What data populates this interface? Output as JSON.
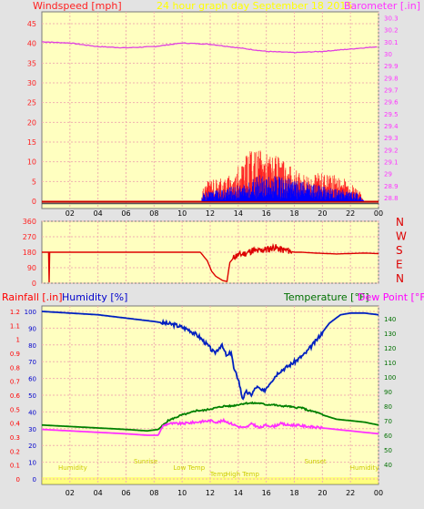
{
  "colors": {
    "background": "#e3e3e3",
    "plot_bg": "#ffffc0",
    "grid": "#f0b0b0",
    "wind": "#ff2020",
    "gust": "#0000ff",
    "barometer": "#e040e0",
    "direction": "#dd0000",
    "humidity": "#0020c0",
    "temperature": "#008000",
    "dew_point": "#ff30ff",
    "rain": "#ffff00",
    "title": "#ffff00",
    "rain_label": "#ff0000",
    "humidity_label": "#0000cc",
    "temperature_label": "#007000",
    "dew_point_label": "#ff00ff"
  },
  "chart_data": [
    {
      "id": "wind",
      "type": "line",
      "title": "24 hour graph day   September 18 2015",
      "ylabel_left": "Windspeed [mph]",
      "ylabel_right": "Barometer [.in]",
      "x_ticks": [
        "02",
        "04",
        "06",
        "08",
        "10",
        "12",
        "14",
        "16",
        "18",
        "20",
        "22",
        "00"
      ],
      "y_left_ticks": [
        0,
        5,
        10,
        15,
        20,
        25,
        30,
        35,
        40,
        45
      ],
      "ylim_left": [
        0,
        48
      ],
      "y_right_ticks": [
        "28.8",
        "28.9",
        "29",
        "29.1",
        "29.2",
        "29.3",
        "29.4",
        "29.5",
        "29.6",
        "29.7",
        "29.8",
        "29.9",
        "30",
        "30.1",
        "30.2",
        "30.3"
      ],
      "ylim_right": [
        28.77,
        30.35
      ],
      "grid": true,
      "series": [
        {
          "key": "barometer",
          "axis": "right",
          "x": [
            0,
            2,
            4,
            6,
            8,
            10,
            12,
            14,
            16,
            18,
            20,
            22,
            24
          ],
          "y": [
            30.1,
            30.09,
            30.06,
            30.05,
            30.06,
            30.09,
            30.08,
            30.05,
            30.02,
            30.01,
            30.02,
            30.04,
            30.06
          ]
        },
        {
          "key": "wind_env",
          "axis": "left",
          "x": [
            0,
            11.3,
            11.5,
            12,
            13,
            13.8,
            14.2,
            15,
            15.6,
            16.5,
            17.5,
            18.5,
            19.5,
            20.5,
            21.5,
            22.5,
            23,
            24
          ],
          "y": [
            0,
            0,
            3,
            5,
            5,
            6,
            9,
            11,
            11,
            10,
            8,
            6,
            6,
            6,
            5,
            3,
            0,
            0
          ]
        },
        {
          "key": "gust_env",
          "axis": "left",
          "x": [
            0,
            11.3,
            11.5,
            13,
            14.5,
            15.5,
            16.5,
            18,
            19.5,
            21,
            22.5,
            23,
            24
          ],
          "y": [
            0,
            0,
            2,
            3,
            4,
            6,
            6,
            5,
            4,
            3,
            2,
            0,
            0
          ]
        }
      ]
    },
    {
      "id": "direction",
      "type": "line",
      "y_ticks": [
        0,
        90,
        180,
        270,
        360
      ],
      "ylim": [
        0,
        360
      ],
      "compass_labels": [
        "N",
        "W",
        "S",
        "E",
        "N"
      ],
      "series": [
        {
          "key": "direction",
          "x": [
            0,
            0.5,
            0.5,
            0.55,
            0.55,
            11.3,
            11.8,
            12.1,
            12.4,
            12.9,
            13.2,
            13.4,
            13.8,
            14.1,
            14.6,
            15.0,
            15.4,
            15.8,
            16.2,
            16.6,
            17.0,
            17.5,
            18.0,
            18.5,
            19.5,
            21,
            23,
            24
          ],
          "y": [
            180,
            180,
            5,
            5,
            180,
            180,
            130,
            70,
            40,
            15,
            10,
            120,
            160,
            165,
            175,
            190,
            185,
            195,
            200,
            210,
            195,
            190,
            180,
            180,
            175,
            170,
            175,
            172
          ]
        }
      ]
    },
    {
      "id": "climate",
      "type": "line",
      "ylabel_left_1": "Rainfall [.in]",
      "ylabel_left_2": "Humidity [%]",
      "ylabel_right_1": "Temperature [°F]",
      "ylabel_right_2": "Dew Point [°F]",
      "rain_ticks": [
        "0",
        "0.1",
        "0.2",
        "0.3",
        "0.4",
        "0.5",
        "0.6",
        "0.7",
        "0.8",
        "0.9",
        "1",
        "1.1",
        "1.2"
      ],
      "rain_ylim": [
        0,
        1.2
      ],
      "humidity_ticks": [
        0,
        10,
        20,
        30,
        40,
        50,
        60,
        70,
        80,
        90,
        100
      ],
      "humidity_ylim": [
        0,
        100
      ],
      "temp_ticks": [
        40,
        50,
        60,
        70,
        80,
        90,
        100,
        110,
        120,
        130,
        140
      ],
      "temp_ylim": [
        30,
        145
      ],
      "x_ticks": [
        "02",
        "04",
        "06",
        "08",
        "10",
        "12",
        "14",
        "16",
        "18",
        "20",
        "22",
        "00"
      ],
      "series": [
        {
          "key": "humidity",
          "axis": "humidity",
          "x": [
            0,
            2,
            4,
            6,
            8,
            9.5,
            10.5,
            11.2,
            11.8,
            12.3,
            12.8,
            13.2,
            13.5,
            13.7,
            14.0,
            14.3,
            14.6,
            14.9,
            15.3,
            15.8,
            16.3,
            16.9,
            17.5,
            18.2,
            18.8,
            19.5,
            20.5,
            21.3,
            22,
            23,
            24
          ],
          "y": [
            100,
            99,
            98,
            96,
            94,
            92,
            89,
            85,
            80,
            75,
            80,
            73,
            76,
            65,
            60,
            48,
            52,
            50,
            55,
            52,
            58,
            64,
            67,
            71,
            75,
            82,
            93,
            98,
            99,
            99,
            98
          ]
        },
        {
          "key": "temperature",
          "axis": "temp",
          "x": [
            0,
            2,
            4,
            6,
            7.5,
            8.3,
            9,
            9.5,
            10,
            10.5,
            11,
            11.5,
            12,
            12.5,
            13,
            13.5,
            14,
            14.5,
            15,
            15.5,
            16,
            16.5,
            17,
            17.5,
            18,
            18.5,
            19,
            19.5,
            20,
            21,
            22,
            23,
            24
          ],
          "y": [
            67,
            66,
            65,
            64,
            63,
            64,
            70,
            72,
            74,
            75,
            77,
            77,
            78,
            79,
            80,
            80,
            81,
            82,
            82,
            82,
            81,
            81,
            80,
            80,
            79,
            79,
            77,
            76,
            74,
            71,
            70,
            69,
            67
          ]
        },
        {
          "key": "dew_point",
          "axis": "temp",
          "x": [
            0,
            2,
            4,
            6,
            7.5,
            8.3,
            8.6,
            9,
            10,
            11,
            12,
            12.5,
            13,
            13.5,
            14,
            14.5,
            15,
            15.5,
            16,
            16.5,
            17,
            17.5,
            18,
            19,
            20,
            21,
            22,
            23,
            24
          ],
          "y": [
            64,
            63,
            62,
            61,
            60,
            60,
            66,
            68,
            68,
            69,
            70,
            69,
            70,
            68,
            66,
            65,
            68,
            65,
            67,
            66,
            68,
            67,
            67,
            66,
            65,
            64,
            63,
            62,
            61
          ]
        }
      ],
      "annotations": [
        {
          "text": "Humidity",
          "x": 2.2,
          "pos": "lower"
        },
        {
          "text": "Sunrise",
          "x": 7.4,
          "pos": "upper"
        },
        {
          "text": "Sunset",
          "x": 19.5,
          "pos": "upper"
        },
        {
          "text": "Low Temp",
          "x": 10.5,
          "pos": "lower"
        },
        {
          "text": "Temp",
          "x": 12.6,
          "pos": "lowest"
        },
        {
          "text": "High Temp",
          "x": 14.3,
          "pos": "lowest"
        },
        {
          "text": "Humidity",
          "x": 23.0,
          "pos": "lower"
        }
      ]
    }
  ]
}
